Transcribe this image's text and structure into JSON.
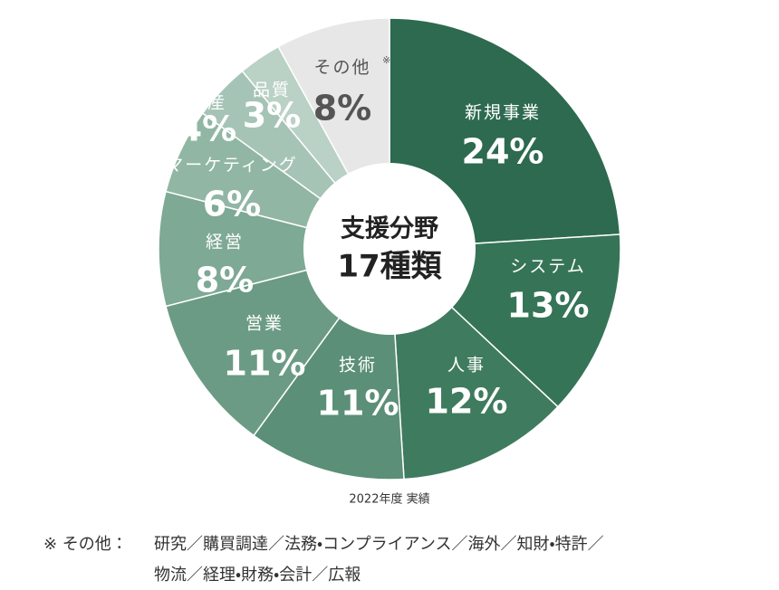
{
  "chart_data": {
    "type": "donut",
    "center_label": [
      "支援分野",
      "17種類"
    ],
    "categories": [
      "新規事業",
      "システム",
      "人事",
      "技術",
      "営業",
      "経営",
      "マーケティング",
      "生産",
      "品質",
      "その他"
    ],
    "values": [
      24,
      13,
      12,
      11,
      11,
      8,
      6,
      4,
      3,
      8
    ],
    "value_labels": [
      "24%",
      "13%",
      "12%",
      "11%",
      "11%",
      "8%",
      "6%",
      "4%",
      "3%",
      "8%"
    ],
    "colors": [
      "#2d6a4f",
      "#367457",
      "#3f7b5e",
      "#5b8f77",
      "#6b9b84",
      "#7ea994",
      "#91b6a4",
      "#a6c4b6",
      "#bad1c6",
      "#e7e7e7"
    ],
    "category_note": {
      "index": 9,
      "mark": "※"
    },
    "caption": "2022年度 実績",
    "footnote": {
      "marker": "※ その他：",
      "lines": [
        "研究／購買調達／法務・コンプライアンス／海外／知財・特許／",
        "物流／経理・財務・会計／広報"
      ]
    }
  }
}
